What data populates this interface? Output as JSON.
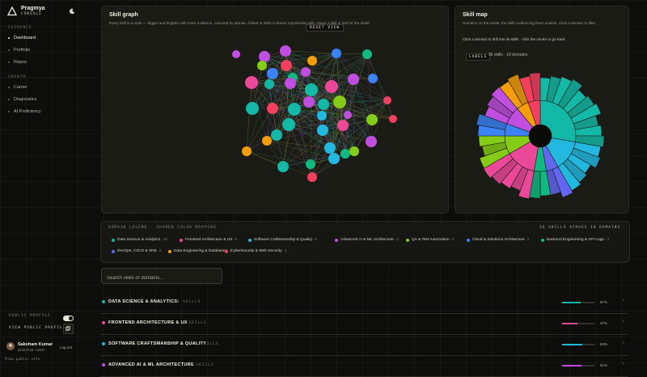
{
  "brand": {
    "name": "Pragmya",
    "subtitle": "CONSOLE"
  },
  "nav": {
    "sections": [
      {
        "label": "EVIDENCE",
        "items": [
          {
            "label": "Dashboard",
            "active": true
          },
          {
            "label": "Portfolio"
          },
          {
            "label": "Repos"
          }
        ]
      },
      {
        "label": "GROWTH",
        "items": [
          {
            "label": "Career"
          },
          {
            "label": "Diagnostics"
          },
          {
            "label": "AI Proficiency"
          }
        ]
      }
    ]
  },
  "profile": {
    "public_label": "PUBLIC PROFILE",
    "public_enabled": true,
    "view_label": "VIEW PUBLIC PROFILE",
    "user_name": "Saksham Kumar",
    "user_handle": "@saksham-sakoh",
    "logout_label": "Log out",
    "view_site_label": "View public site"
  },
  "skill_graph": {
    "title": "Skill graph",
    "description": "Every skill is a node — bigger and brighter with more evidence, coloured by domain, linked to skills it shares repositories with. Hover a skill or link for the detail.",
    "reset_label": "RESET VIEW"
  },
  "skill_map": {
    "title": "Skill map",
    "description": "Domains on the inside, the skills evidencing them outside. Click a domain to filter.",
    "hint": "Click a domain to drill into its skills · click the centre to go back",
    "labels_badge": "LABELS",
    "count_text": "36 skills · 10 domains"
  },
  "legend": {
    "heading": "DOMAIN LEGEND · SHARED COLOR MAPPING",
    "total": "36 SKILLS ACROSS 10 DOMAINS",
    "items": [
      {
        "label": "Data Science & Analytics",
        "count": "10",
        "color": "#14b8a6"
      },
      {
        "label": "Frontend Architecture & UX",
        "count": "5",
        "color": "#ec4899"
      },
      {
        "label": "Software Craftsmanship & Quality",
        "count": "5",
        "color": "#22b8e0"
      },
      {
        "label": "Advanced AI & ML Architecture",
        "count": "3",
        "color": "#c04ee0"
      },
      {
        "label": "QA & Test Automation",
        "count": "3",
        "color": "#84cc16"
      },
      {
        "label": "Cloud & Solutions Architecture",
        "count": "2",
        "color": "#3b82f6"
      },
      {
        "label": "Backend Engineering & API Logic",
        "count": "2",
        "color": "#10b981"
      },
      {
        "label": "DevOps, CI/CD & SRE",
        "count": "2",
        "color": "#6366f1"
      },
      {
        "label": "Data Engineering & Databases",
        "count": "2",
        "color": "#f59e0b"
      },
      {
        "label": "Cybersecurity & Web Security",
        "count": "2",
        "color": "#f43f5e"
      }
    ]
  },
  "search": {
    "placeholder": "Search skills or domains..."
  },
  "domain_rows": [
    {
      "name": "DATA SCIENCE & ANALYTICS",
      "count": "10 SKILLS",
      "pct_text": "57%",
      "pct": 0.57,
      "color": "#14b8a6"
    },
    {
      "name": "FRONTEND ARCHITECTURE & UX",
      "count": "5 SKILLS",
      "pct_text": "47%",
      "pct": 0.47,
      "color": "#ec4899"
    },
    {
      "name": "SOFTWARE CRAFTSMANSHIP & QUALITY",
      "count": "5 SKILLS",
      "pct_text": "63%",
      "pct": 0.63,
      "color": "#22b8e0"
    },
    {
      "name": "ADVANCED AI & ML ARCHITECTURE",
      "count": "3 SKILLS",
      "pct_text": "61%",
      "pct": 0.61,
      "color": "#c04ee0"
    }
  ]
}
